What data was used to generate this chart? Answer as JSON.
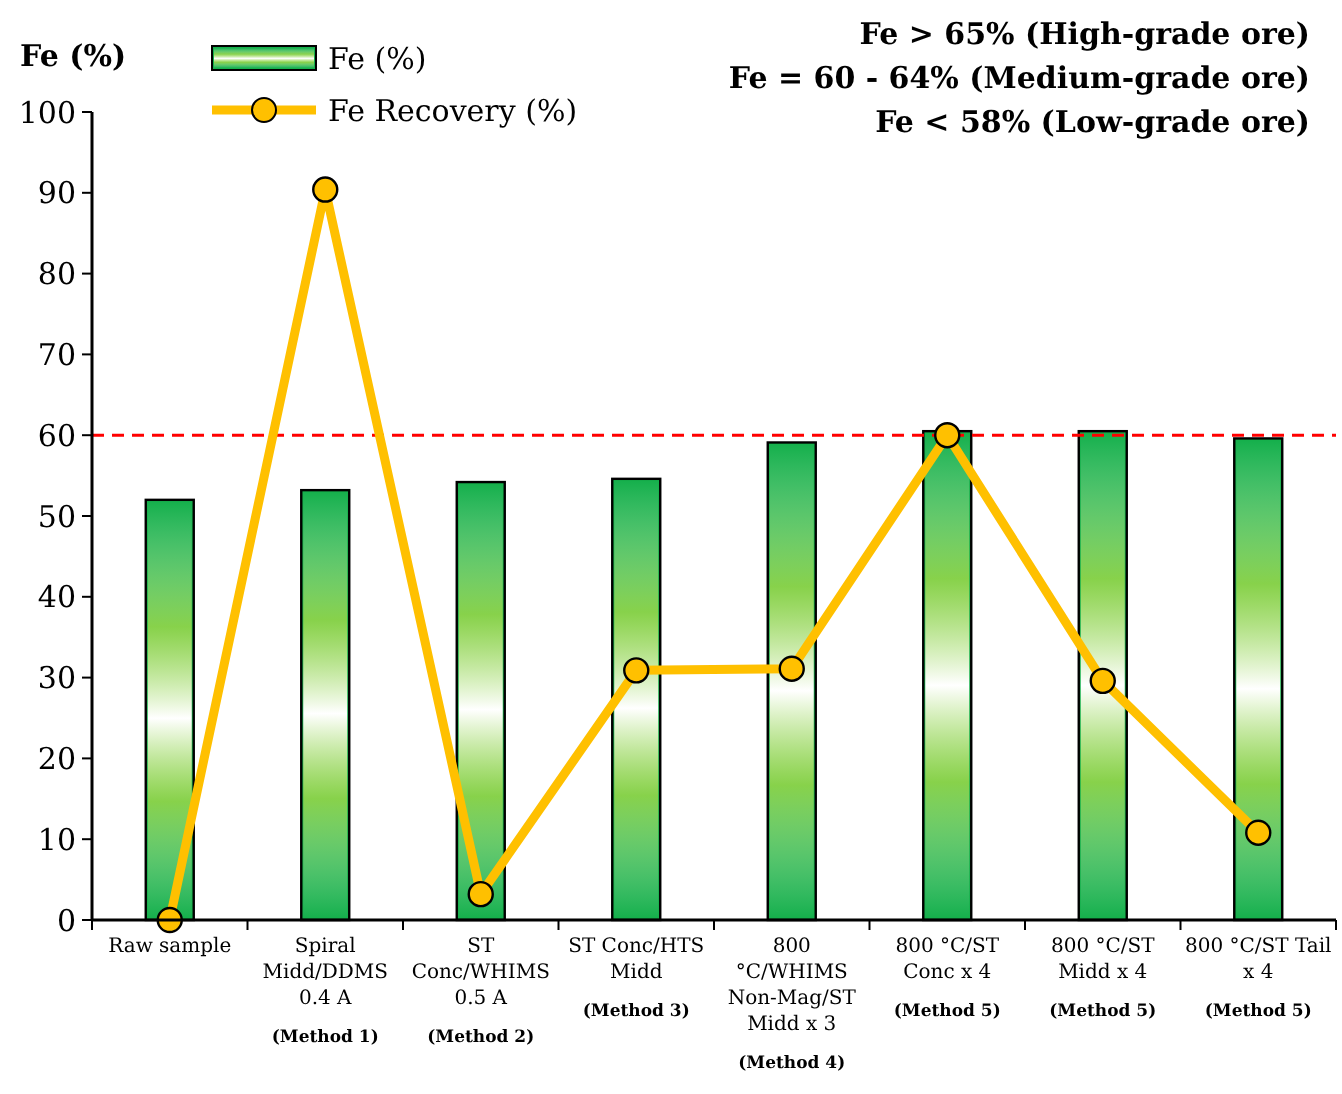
{
  "chart_data": {
    "type": "bar",
    "ylabel": "Fe (%)",
    "categories": [
      "Raw sample",
      "Spiral\nMidd/DDMS\n0.4 A\n\n(Method 1)",
      "ST\nConc/WHIMS\n0.5 A\n\n(Method 2)",
      "ST Conc/HTS\nMidd\n\n(Method 3)",
      "800\n°C/WHIMS\nNon-Mag/ST\nMidd x 3\n\n(Method 4)",
      "800 °C/ST\nConc x 4\n\n(Method 5)",
      "800 °C/ST\nMidd x 4\n\n(Method 5)",
      "800 °C/ST Tail\nx 4\n\n(Method 5)"
    ],
    "series": [
      {
        "name": "Fe (%)",
        "type": "bar",
        "color": "#16b04c",
        "values": [
          52,
          53.2,
          54.2,
          54.6,
          59.1,
          60.5,
          60.5,
          59.6
        ]
      },
      {
        "name": "Fe Recovery (%)",
        "type": "line",
        "color": "#ffc000",
        "values": [
          0,
          90.4,
          3.2,
          30.9,
          31.1,
          60,
          29.6,
          10.8
        ]
      }
    ],
    "ylim": [
      0,
      100
    ],
    "yticks": [
      0,
      10,
      20,
      30,
      40,
      50,
      60,
      70,
      80,
      90,
      100
    ],
    "ref_lines": [
      {
        "axis": "y",
        "value": 60,
        "color": "#ff0000",
        "line_style": "dashed"
      }
    ],
    "annotations": [
      "Fe > 65% (High-grade ore)",
      "Fe = 60 - 64% (Medium-grade ore)",
      "Fe < 58% (Low-grade ore)"
    ],
    "legend": "top left",
    "marker": "circle",
    "line_style": "solid",
    "grid": false
  }
}
